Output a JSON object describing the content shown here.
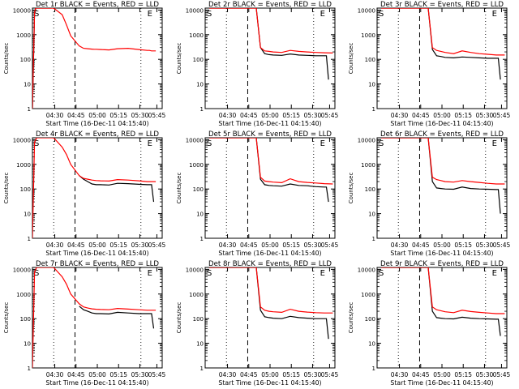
{
  "colors": {
    "events": "#000000",
    "lld": "#ff0000",
    "background": "#ffffff"
  },
  "common": {
    "ylabel": "Counts/sec",
    "xlabel": "Start Time (16-Dec-11 04:15:40)",
    "y_ticks": [
      "1",
      "10",
      "100",
      "1000",
      "10000"
    ],
    "x_ticks": [
      "04:30",
      "04:45",
      "05:00",
      "05:15",
      "05:30",
      "05:45"
    ]
  },
  "chart_data": [
    {
      "type": "line",
      "title": "Det 1r BLACK = Events, RED = LLD",
      "xlabel": "Start Time (16-Dec-11 04:15:40)",
      "ylabel": "Counts/sec",
      "xlim_min": [
        0,
        61
      ],
      "ylim": [
        1,
        12000
      ],
      "yscale": "log",
      "markers": {
        "S": "S",
        "E": "E"
      },
      "series": [
        {
          "name": "Events",
          "x": [
            0,
            1,
            1.5,
            2,
            3,
            4,
            5,
            6,
            7,
            8,
            8.5,
            9
          ],
          "y": [
            1,
            8000,
            12000,
            12000,
            12000,
            12000,
            12000,
            12000,
            12000,
            12000,
            12000,
            12000
          ]
        },
        {
          "name": "LLD",
          "x": [
            0,
            1,
            1.5,
            2,
            3,
            4,
            5,
            6,
            8,
            10,
            14,
            16,
            18,
            22,
            24,
            26,
            28,
            29,
            30,
            32,
            36,
            40,
            45,
            50,
            54,
            55,
            56,
            58
          ],
          "y": [
            1,
            8000,
            12000,
            12000,
            12000,
            12000,
            12000,
            12000,
            12000,
            12000,
            6500,
            2500,
            900,
            350,
            280,
            270,
            260,
            255,
            255,
            250,
            240,
            270,
            280,
            250,
            230,
            230,
            220,
            220
          ]
        }
      ]
    },
    {
      "type": "line",
      "title": "Det 2r BLACK = Events, RED = LLD",
      "xlabel": "Start Time (16-Dec-11 04:15:40)",
      "ylabel": "Counts/sec",
      "xlim_min": [
        0,
        61
      ],
      "ylim": [
        1,
        12000
      ],
      "yscale": "log",
      "markers": {
        "S": "S",
        "E": "E"
      },
      "series": [
        {
          "name": "Events",
          "x": [
            2,
            4,
            8,
            12,
            16,
            20,
            24,
            26,
            28,
            30,
            32,
            36,
            40,
            44,
            48,
            52,
            56,
            57,
            58
          ],
          "y": [
            12000,
            12000,
            12000,
            12000,
            12000,
            12000,
            12000,
            300,
            170,
            155,
            150,
            145,
            165,
            150,
            145,
            140,
            140,
            140,
            15
          ]
        },
        {
          "name": "LLD",
          "x": [
            2,
            4,
            8,
            12,
            16,
            20,
            24,
            26,
            28,
            30,
            32,
            36,
            40,
            44,
            48,
            52,
            56,
            60
          ],
          "y": [
            12000,
            12000,
            12000,
            12000,
            12000,
            12000,
            12000,
            300,
            220,
            210,
            200,
            190,
            230,
            210,
            200,
            190,
            185,
            180
          ]
        }
      ]
    },
    {
      "type": "line",
      "title": "Det 3r BLACK = Events, RED = LLD",
      "xlabel": "Start Time (16-Dec-11 04:15:40)",
      "ylabel": "Counts/sec",
      "xlim_min": [
        0,
        61
      ],
      "ylim": [
        1,
        12000
      ],
      "yscale": "log",
      "markers": {
        "S": "S",
        "E": "E"
      },
      "series": [
        {
          "name": "Events",
          "x": [
            2,
            4,
            8,
            12,
            16,
            20,
            24,
            26,
            28,
            30,
            32,
            36,
            40,
            44,
            48,
            52,
            56,
            57,
            58
          ],
          "y": [
            12000,
            12000,
            12000,
            12000,
            12000,
            12000,
            12000,
            250,
            140,
            130,
            120,
            115,
            125,
            120,
            115,
            110,
            110,
            110,
            15
          ]
        },
        {
          "name": "LLD",
          "x": [
            2,
            4,
            8,
            12,
            16,
            20,
            24,
            26,
            28,
            30,
            32,
            36,
            40,
            44,
            48,
            52,
            56,
            60
          ],
          "y": [
            12000,
            12000,
            12000,
            12000,
            12000,
            12000,
            12000,
            300,
            230,
            210,
            190,
            170,
            220,
            190,
            170,
            160,
            150,
            150
          ]
        }
      ]
    },
    {
      "type": "line",
      "title": "Det 4r BLACK = Events, RED = LLD",
      "xlabel": "Start Time (16-Dec-11 04:15:40)",
      "ylabel": "Counts/sec",
      "xlim_min": [
        0,
        61
      ],
      "ylim": [
        1,
        12000
      ],
      "yscale": "log",
      "markers": {
        "S": "S",
        "E": "E"
      },
      "series": [
        {
          "name": "Events",
          "x": [
            22,
            24,
            26,
            28,
            30,
            32,
            36,
            40,
            45,
            50,
            54,
            55,
            56,
            57
          ],
          "y": [
            350,
            250,
            200,
            160,
            150,
            150,
            145,
            170,
            165,
            155,
            150,
            150,
            150,
            30
          ]
        },
        {
          "name": "LLD",
          "x": [
            0,
            1,
            2,
            4,
            6,
            8,
            10,
            14,
            16,
            18,
            22,
            24,
            26,
            28,
            30,
            32,
            36,
            40,
            45,
            50,
            54,
            56,
            58
          ],
          "y": [
            1,
            8000,
            12000,
            12000,
            12000,
            12000,
            12000,
            5000,
            2500,
            1000,
            350,
            270,
            250,
            230,
            220,
            215,
            210,
            240,
            230,
            215,
            200,
            200,
            200
          ]
        }
      ]
    },
    {
      "type": "line",
      "title": "Det 5r BLACK = Events, RED = LLD",
      "xlabel": "Start Time (16-Dec-11 04:15:40)",
      "ylabel": "Counts/sec",
      "xlim_min": [
        0,
        61
      ],
      "ylim": [
        1,
        12000
      ],
      "yscale": "log",
      "markers": {
        "S": "S",
        "E": "E"
      },
      "series": [
        {
          "name": "Events",
          "x": [
            2,
            4,
            8,
            12,
            16,
            20,
            24,
            26,
            28,
            30,
            32,
            36,
            40,
            44,
            48,
            52,
            56,
            57,
            58
          ],
          "y": [
            12000,
            12000,
            12000,
            12000,
            12000,
            12000,
            12000,
            250,
            150,
            140,
            135,
            130,
            160,
            140,
            135,
            125,
            120,
            120,
            30
          ]
        },
        {
          "name": "LLD",
          "x": [
            2,
            4,
            8,
            12,
            16,
            20,
            24,
            26,
            28,
            30,
            32,
            36,
            40,
            44,
            48,
            52,
            56,
            60
          ],
          "y": [
            12000,
            12000,
            12000,
            12000,
            12000,
            12000,
            12000,
            300,
            210,
            200,
            190,
            180,
            260,
            200,
            185,
            175,
            165,
            160
          ]
        }
      ]
    },
    {
      "type": "line",
      "title": "Det 6r BLACK = Events, RED = LLD",
      "xlabel": "Start Time (16-Dec-11 04:15:40)",
      "ylabel": "Counts/sec",
      "xlim_min": [
        0,
        61
      ],
      "ylim": [
        1,
        12000
      ],
      "yscale": "log",
      "markers": {
        "S": "S",
        "E": "E"
      },
      "series": [
        {
          "name": "Events",
          "x": [
            2,
            4,
            8,
            12,
            16,
            20,
            24,
            26,
            28,
            30,
            32,
            36,
            40,
            44,
            48,
            52,
            56,
            57,
            58
          ],
          "y": [
            12000,
            12000,
            12000,
            12000,
            12000,
            12000,
            12000,
            200,
            110,
            105,
            100,
            98,
            120,
            105,
            100,
            98,
            95,
            95,
            10
          ]
        },
        {
          "name": "LLD",
          "x": [
            2,
            4,
            8,
            12,
            16,
            20,
            24,
            26,
            28,
            30,
            32,
            36,
            40,
            44,
            48,
            52,
            56,
            60
          ],
          "y": [
            12000,
            12000,
            12000,
            12000,
            12000,
            12000,
            12000,
            300,
            240,
            220,
            200,
            190,
            220,
            200,
            185,
            170,
            160,
            160
          ]
        }
      ]
    },
    {
      "type": "line",
      "title": "Det 7r BLACK = Events, RED = LLD",
      "xlabel": "Start Time (16-Dec-11 04:15:40)",
      "ylabel": "Counts/sec",
      "xlim_min": [
        0,
        61
      ],
      "ylim": [
        1,
        12000
      ],
      "yscale": "log",
      "markers": {
        "S": "S",
        "E": "E"
      },
      "series": [
        {
          "name": "Events",
          "x": [
            22,
            24,
            26,
            28,
            30,
            32,
            36,
            40,
            45,
            50,
            54,
            55,
            56,
            57
          ],
          "y": [
            320,
            230,
            200,
            170,
            160,
            160,
            155,
            180,
            170,
            160,
            160,
            160,
            160,
            40
          ]
        },
        {
          "name": "LLD",
          "x": [
            0,
            1,
            2,
            4,
            6,
            8,
            10,
            14,
            16,
            18,
            22,
            24,
            26,
            28,
            30,
            32,
            36,
            40,
            45,
            50,
            54,
            56,
            58
          ],
          "y": [
            1,
            8000,
            12000,
            12000,
            12000,
            12000,
            12000,
            5000,
            2500,
            1000,
            400,
            300,
            270,
            250,
            240,
            235,
            230,
            260,
            245,
            230,
            220,
            220,
            220
          ]
        }
      ]
    },
    {
      "type": "line",
      "title": "Det 8r BLACK = Events, RED = LLD",
      "xlabel": "Start Time (16-Dec-11 04:15:40)",
      "ylabel": "Counts/sec",
      "xlim_min": [
        0,
        61
      ],
      "ylim": [
        1,
        12000
      ],
      "yscale": "log",
      "markers": {
        "S": "S",
        "E": "E"
      },
      "series": [
        {
          "name": "Events",
          "x": [
            2,
            4,
            8,
            12,
            16,
            20,
            24,
            26,
            28,
            30,
            32,
            36,
            40,
            44,
            48,
            52,
            56,
            57,
            58
          ],
          "y": [
            12000,
            12000,
            12000,
            12000,
            12000,
            12000,
            12000,
            220,
            120,
            110,
            105,
            100,
            125,
            110,
            105,
            100,
            100,
            100,
            15
          ]
        },
        {
          "name": "LLD",
          "x": [
            2,
            4,
            8,
            12,
            16,
            20,
            24,
            26,
            28,
            30,
            32,
            36,
            40,
            44,
            48,
            52,
            56,
            60
          ],
          "y": [
            12000,
            12000,
            12000,
            12000,
            12000,
            12000,
            12000,
            300,
            220,
            200,
            190,
            180,
            240,
            200,
            185,
            175,
            170,
            170
          ]
        }
      ]
    },
    {
      "type": "line",
      "title": "Det 9r BLACK = Events, RED = LLD",
      "xlabel": "Start Time (16-Dec-11 04:15:40)",
      "ylabel": "Counts/sec",
      "xlim_min": [
        0,
        61
      ],
      "ylim": [
        1,
        12000
      ],
      "yscale": "log",
      "markers": {
        "S": "S",
        "E": "E"
      },
      "series": [
        {
          "name": "Events",
          "x": [
            2,
            4,
            8,
            12,
            16,
            20,
            24,
            26,
            28,
            30,
            32,
            36,
            40,
            44,
            48,
            52,
            56,
            57,
            58
          ],
          "y": [
            12000,
            12000,
            12000,
            12000,
            12000,
            12000,
            12000,
            200,
            110,
            105,
            100,
            98,
            115,
            105,
            100,
            98,
            95,
            95,
            20
          ]
        },
        {
          "name": "LLD",
          "x": [
            2,
            4,
            8,
            12,
            16,
            20,
            24,
            26,
            28,
            30,
            32,
            36,
            40,
            44,
            48,
            52,
            56,
            60
          ],
          "y": [
            12000,
            12000,
            12000,
            12000,
            12000,
            12000,
            12000,
            300,
            230,
            210,
            190,
            175,
            220,
            195,
            180,
            170,
            160,
            160
          ]
        }
      ]
    }
  ]
}
